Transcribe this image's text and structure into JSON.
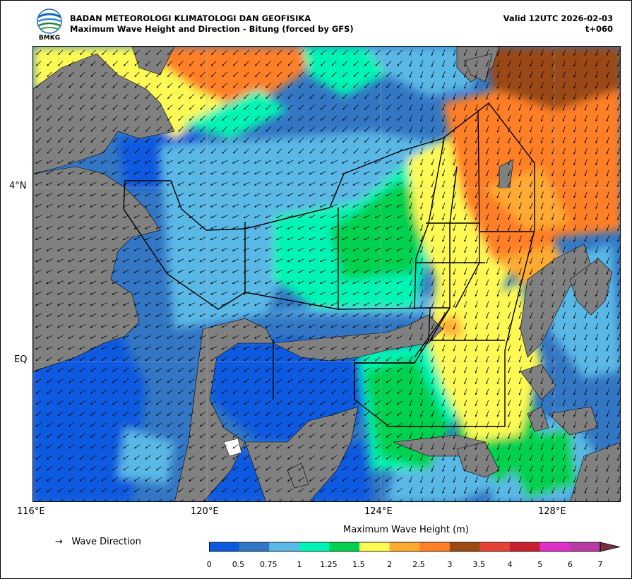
{
  "header": {
    "agency": "BADAN METEOROLOGI KLIMATOLOGI DAN GEOFISIKA",
    "subtitle": "Maximum Wave Height and Direction - Bitung (forced by GFS)",
    "valid": "Valid 12UTC 2026-02-03",
    "lead": "t+060"
  },
  "logo": {
    "text": "BMKG",
    "colors": [
      "#1565c0",
      "#2e7d32",
      "#ffffff"
    ]
  },
  "map": {
    "lat_labels": [
      "4°N",
      "EQ"
    ],
    "lon_labels": [
      "116°E",
      "120°E",
      "124°E",
      "128°E"
    ],
    "land_color": "#808080",
    "arrow_icon": "wave-direction-arrow-icon"
  },
  "legend": {
    "arrow_symbol": "→",
    "arrow_label": "Wave Direction",
    "colorbar_title": "Maximum Wave Height (m)",
    "ticks": [
      "0",
      "0.5",
      "0.75",
      "1",
      "1.25",
      "1.5",
      "2",
      "2.5",
      "3",
      "3.5",
      "4",
      "5",
      "6",
      "7"
    ],
    "colors": [
      "#0a5ae0",
      "#3377c4",
      "#5ab8e6",
      "#00f5b5",
      "#00d150",
      "#fdfa55",
      "#ffaa33",
      "#ff7f27",
      "#9a4a12",
      "#e64336",
      "#c8222f",
      "#e030c8",
      "#b83aa5",
      "#7a3040"
    ]
  }
}
